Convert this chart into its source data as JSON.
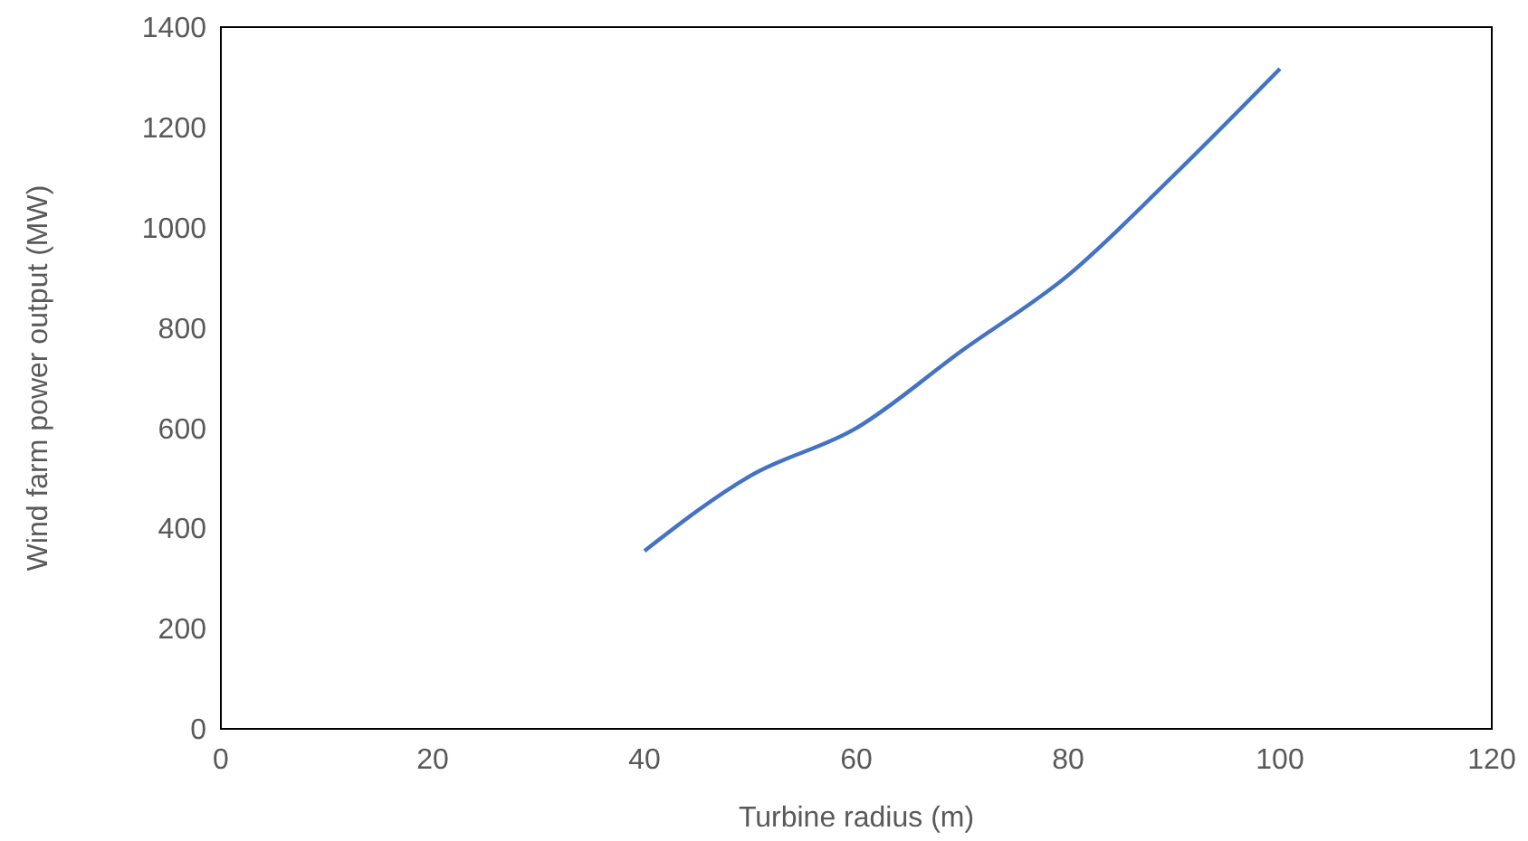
{
  "chart_data": {
    "type": "line",
    "xlabel": "Turbine radius (m)",
    "ylabel": "Wind farm power output (MW)",
    "x": [
      40,
      50,
      60,
      70,
      80,
      90,
      100
    ],
    "series": [
      {
        "color": "#4472c4",
        "values": [
          355,
          505,
          600,
          755,
          905,
          1105,
          1317
        ]
      }
    ],
    "xlim": [
      0,
      120
    ],
    "xticks": [
      0,
      20,
      40,
      60,
      80,
      100,
      120
    ],
    "ylim": [
      0,
      1400
    ],
    "yticks": [
      0,
      200,
      400,
      600,
      800,
      1000,
      1200,
      1400
    ],
    "marker": "none",
    "line_style": "solid"
  }
}
